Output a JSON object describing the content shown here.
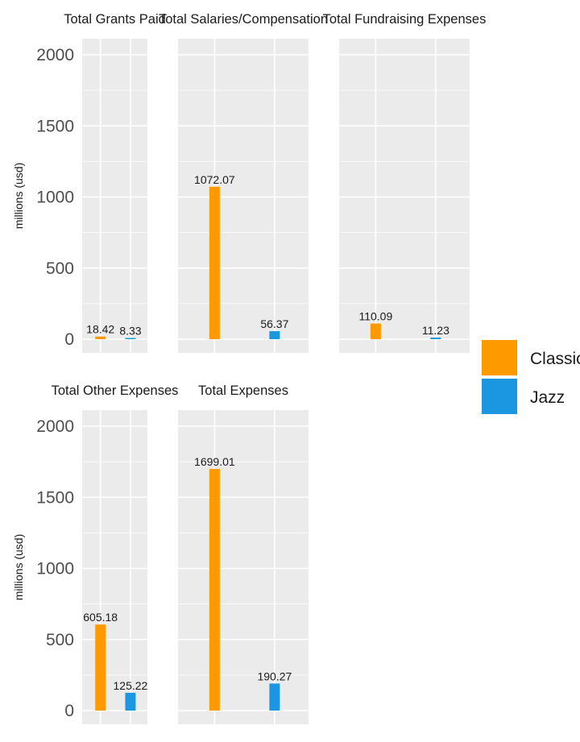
{
  "chart_data": {
    "type": "bar",
    "ylabel": "millions (usd)",
    "ylim": [
      0,
      2000
    ],
    "yticks": [
      0,
      500,
      1000,
      1500,
      2000
    ],
    "grid": true,
    "legend_position": "right",
    "series_names": [
      "Classical",
      "Jazz"
    ],
    "colors": {
      "Classical": "#FF9900",
      "Jazz": "#1B96E0"
    },
    "facets": [
      {
        "title": "Total Grants Paid",
        "values": [
          18.42,
          8.33
        ],
        "labels": [
          "18.42",
          "8.33"
        ]
      },
      {
        "title": "Total Salaries/Compensation",
        "values": [
          1072.07,
          56.37
        ],
        "labels": [
          "1072.07",
          "56.37"
        ]
      },
      {
        "title": "Total Fundraising Expenses",
        "values": [
          110.09,
          11.23
        ],
        "labels": [
          "110.09",
          "11.23"
        ]
      },
      {
        "title": "Total Other Expenses",
        "values": [
          605.18,
          125.22
        ],
        "labels": [
          "605.18",
          "125.22"
        ]
      },
      {
        "title": "Total Expenses",
        "values": [
          1699.01,
          190.27
        ],
        "labels": [
          "1699.01",
          "190.27"
        ]
      }
    ]
  }
}
